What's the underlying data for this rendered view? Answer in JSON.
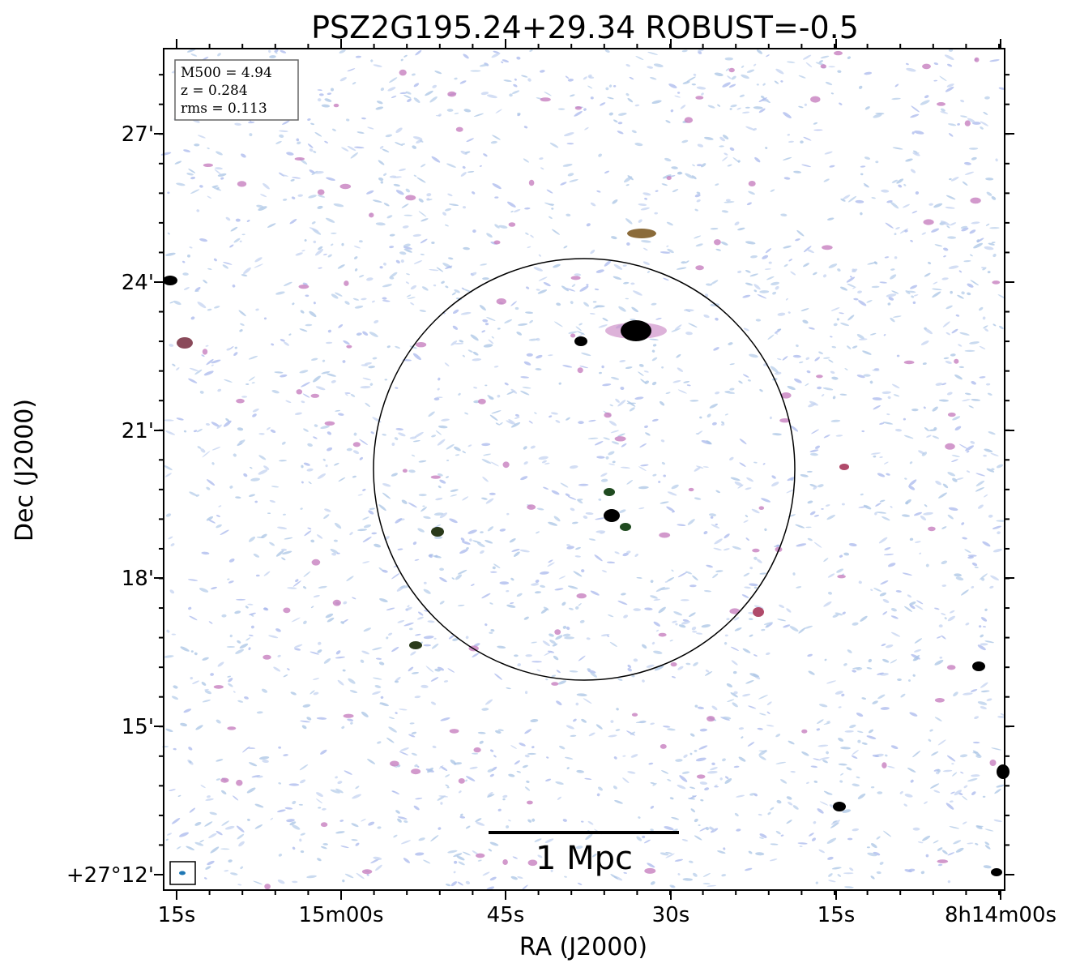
{
  "header": {
    "title": "PSZ2G195.24+29.34 ROBUST=-0.5"
  },
  "info": [
    "M500 = 4.94",
    "z = 0.284",
    "rms = 0.113"
  ],
  "axes": {
    "x_label": "RA (J2000)",
    "y_label": "Dec (J2000)",
    "x_ticks": [
      "15s",
      "15m00s",
      "45s",
      "30s",
      "15s",
      "8h14m00s"
    ],
    "y_ticks": [
      "27'",
      "24'",
      "21'",
      "18'",
      "15'",
      "+27°12'"
    ]
  },
  "scale_bar": "1 Mpc"
}
